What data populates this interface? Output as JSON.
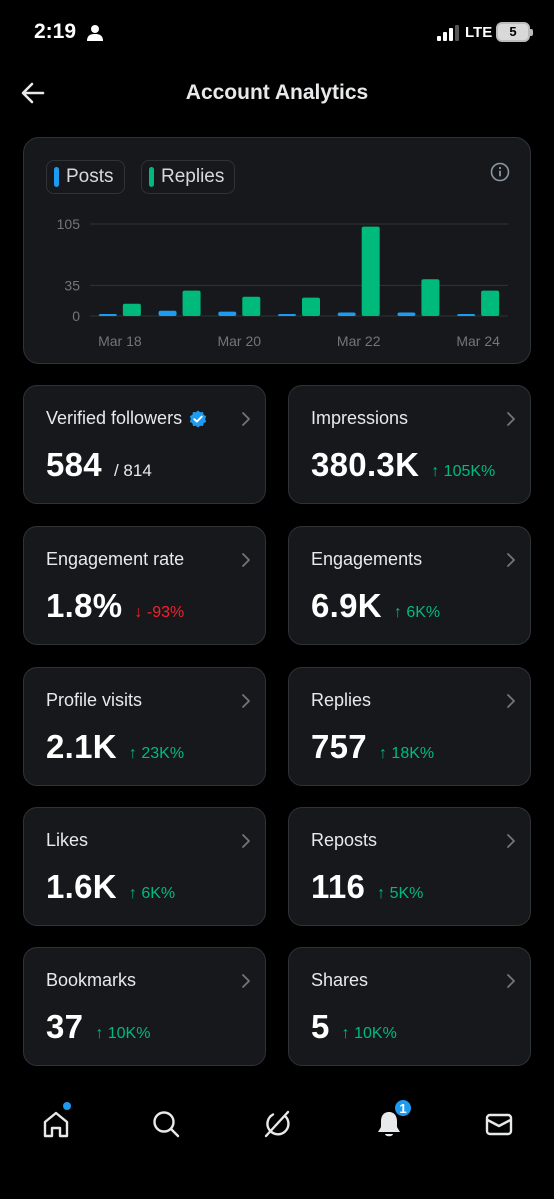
{
  "status_bar": {
    "time": "2:19",
    "network": "LTE",
    "battery": "5"
  },
  "header": {
    "title": "Account Analytics"
  },
  "chart": {
    "legend": [
      {
        "label": "Posts",
        "color": "#1d9bf0"
      },
      {
        "label": "Replies",
        "color": "#00ba7c"
      }
    ],
    "y_ticks": [
      "105",
      "35",
      "0"
    ],
    "x_ticks": [
      "Mar 18",
      "Mar 20",
      "Mar 22",
      "Mar 24"
    ]
  },
  "chart_data": {
    "type": "bar",
    "categories": [
      "Mar 18",
      "Mar 19",
      "Mar 20",
      "Mar 21",
      "Mar 22",
      "Mar 23",
      "Mar 24"
    ],
    "series": [
      {
        "name": "Posts",
        "color": "#1d9bf0",
        "values": [
          2,
          6,
          5,
          2,
          4,
          4,
          1
        ]
      },
      {
        "name": "Replies",
        "color": "#00ba7c",
        "values": [
          14,
          29,
          22,
          21,
          102,
          42,
          29
        ]
      }
    ],
    "ylim": [
      0,
      105
    ],
    "yticks": [
      0,
      35,
      105
    ],
    "xticks": [
      "Mar 18",
      "Mar 20",
      "Mar 22",
      "Mar 24"
    ]
  },
  "metrics": [
    {
      "label": "Verified followers",
      "value": "584",
      "total": "/ 814",
      "verified": true
    },
    {
      "label": "Impressions",
      "value": "380.3K",
      "change": "↑ 105K%",
      "direction": "up"
    },
    {
      "label": "Engagement rate",
      "value": "1.8%",
      "change": "↓ -93%",
      "direction": "down"
    },
    {
      "label": "Engagements",
      "value": "6.9K",
      "change": "↑ 6K%",
      "direction": "up"
    },
    {
      "label": "Profile visits",
      "value": "2.1K",
      "change": "↑ 23K%",
      "direction": "up"
    },
    {
      "label": "Replies",
      "value": "757",
      "change": "↑ 18K%",
      "direction": "up"
    },
    {
      "label": "Likes",
      "value": "1.6K",
      "change": "↑ 6K%",
      "direction": "up"
    },
    {
      "label": "Reposts",
      "value": "116",
      "change": "↑ 5K%",
      "direction": "up"
    },
    {
      "label": "Bookmarks",
      "value": "37",
      "change": "↑ 10K%",
      "direction": "up"
    },
    {
      "label": "Shares",
      "value": "5",
      "change": "↑ 10K%",
      "direction": "up"
    }
  ],
  "bottom_nav": {
    "items": [
      "home-icon",
      "search-icon",
      "grok-icon",
      "bell-icon",
      "mail-icon"
    ],
    "notification_badge": "1"
  }
}
